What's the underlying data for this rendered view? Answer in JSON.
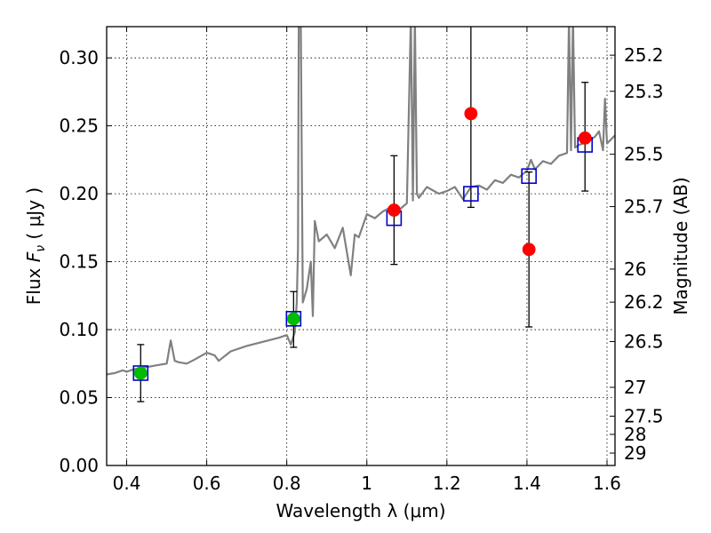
{
  "chart_data": {
    "type": "scatter",
    "xlabel": "Wavelength  λ (μm)",
    "ylabel": "Flux  F_ν  ( μJy )",
    "y2label": "Magnitude (AB)",
    "xlim": [
      0.35,
      1.62
    ],
    "ylim": [
      0.0,
      0.323
    ],
    "grid": true,
    "x_ticks": [
      0.4,
      0.6,
      0.8,
      1.0,
      1.2,
      1.4,
      1.6
    ],
    "x_tick_labels": [
      "0.4",
      "0.6",
      "0.8",
      "1",
      "1.2",
      "1.4",
      "1.6"
    ],
    "y_ticks": [
      0.0,
      0.05,
      0.1,
      0.15,
      0.2,
      0.25,
      0.3
    ],
    "y_tick_labels": [
      "0.00",
      "0.05",
      "0.10",
      "0.15",
      "0.20",
      "0.25",
      "0.30"
    ],
    "mag_ticks": [
      {
        "mag": 25.2,
        "label": "25.2"
      },
      {
        "mag": 25.3,
        "label": "25.3"
      },
      {
        "mag": 25.5,
        "label": "25.5"
      },
      {
        "mag": 25.7,
        "label": "25.7"
      },
      {
        "mag": 26.0,
        "label": "26"
      },
      {
        "mag": 26.2,
        "label": "26.2"
      },
      {
        "mag": 26.5,
        "label": "26.5"
      },
      {
        "mag": 27.0,
        "label": "27"
      },
      {
        "mag": 27.5,
        "label": "27.5"
      },
      {
        "mag": 28.0,
        "label": "28"
      },
      {
        "mag": 29.0,
        "label": "29"
      }
    ],
    "series": [
      {
        "kind": "spectrum",
        "color": "#808080",
        "x": [
          0.35,
          0.37,
          0.39,
          0.4,
          0.42,
          0.44,
          0.46,
          0.48,
          0.5,
          0.51,
          0.52,
          0.53,
          0.55,
          0.57,
          0.6,
          0.62,
          0.63,
          0.66,
          0.7,
          0.74,
          0.78,
          0.8,
          0.81,
          0.82,
          0.825,
          0.828,
          0.83,
          0.835,
          0.84,
          0.85,
          0.86,
          0.865,
          0.87,
          0.88,
          0.9,
          0.92,
          0.94,
          0.96,
          0.97,
          0.98,
          1.0,
          1.02,
          1.04,
          1.06,
          1.08,
          1.1,
          1.11,
          1.115,
          1.12,
          1.125,
          1.13,
          1.15,
          1.18,
          1.2,
          1.22,
          1.24,
          1.26,
          1.28,
          1.3,
          1.32,
          1.34,
          1.36,
          1.38,
          1.4,
          1.41,
          1.42,
          1.44,
          1.46,
          1.48,
          1.5,
          1.505,
          1.51,
          1.515,
          1.52,
          1.53,
          1.55,
          1.57,
          1.58,
          1.59,
          1.595,
          1.6,
          1.62
        ],
        "y": [
          0.067,
          0.068,
          0.07,
          0.069,
          0.071,
          0.072,
          0.073,
          0.074,
          0.075,
          0.092,
          0.077,
          0.076,
          0.075,
          0.078,
          0.083,
          0.081,
          0.077,
          0.084,
          0.088,
          0.091,
          0.094,
          0.096,
          0.089,
          0.098,
          0.12,
          0.16,
          0.33,
          0.33,
          0.12,
          0.13,
          0.15,
          0.11,
          0.18,
          0.165,
          0.17,
          0.16,
          0.175,
          0.14,
          0.17,
          0.168,
          0.185,
          0.182,
          0.187,
          0.19,
          0.188,
          0.193,
          0.33,
          0.195,
          0.33,
          0.2,
          0.197,
          0.205,
          0.2,
          0.202,
          0.205,
          0.196,
          0.205,
          0.206,
          0.203,
          0.21,
          0.208,
          0.214,
          0.212,
          0.217,
          0.225,
          0.218,
          0.224,
          0.222,
          0.228,
          0.23,
          0.33,
          0.232,
          0.33,
          0.234,
          0.236,
          0.238,
          0.242,
          0.246,
          0.232,
          0.27,
          0.237,
          0.243
        ]
      },
      {
        "kind": "model",
        "name": "",
        "marker": "open-square",
        "color": "#0000cc",
        "x": [
          0.435,
          0.817,
          1.068,
          1.26,
          1.405,
          1.545
        ],
        "y": [
          0.068,
          0.108,
          0.182,
          0.2,
          0.213,
          0.236
        ]
      },
      {
        "kind": "observed-optical",
        "name": "",
        "marker": "filled-circle",
        "color": "#00bb00",
        "x": [
          0.435,
          0.817
        ],
        "y": [
          0.068,
          0.108
        ],
        "err_low": [
          0.047,
          0.087
        ],
        "err_high": [
          0.089,
          0.128
        ]
      },
      {
        "kind": "observed-nir",
        "name": "",
        "marker": "filled-circle",
        "color": "#ff0000",
        "x": [
          1.068,
          1.26,
          1.405,
          1.545
        ],
        "y": [
          0.188,
          0.259,
          0.159,
          0.241
        ],
        "err_low": [
          0.148,
          0.19,
          0.102,
          0.202
        ],
        "err_high": [
          0.228,
          0.33,
          0.216,
          0.282
        ]
      }
    ]
  }
}
